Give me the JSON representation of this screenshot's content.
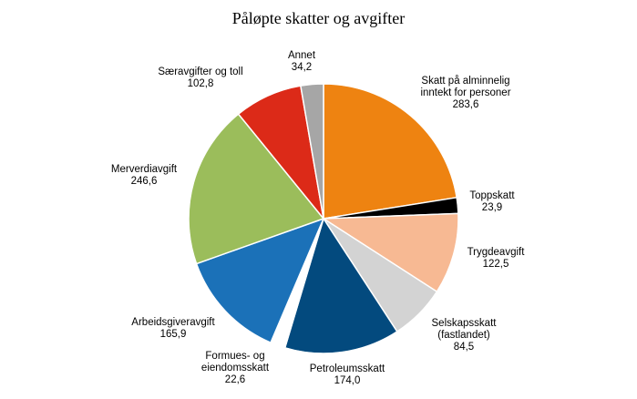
{
  "chart_data": {
    "type": "pie",
    "title": "Påløpte skatter og avgifter",
    "slices": [
      {
        "label": [
          "Skatt på alminnelig",
          "inntekt for personer"
        ],
        "value": 283.6,
        "value_text": "283,6",
        "color": "#ee8311"
      },
      {
        "label": [
          "Toppskatt"
        ],
        "value": 23.9,
        "value_text": "23,9",
        "color": "#000000"
      },
      {
        "label": [
          "Trygdeavgift"
        ],
        "value": 122.5,
        "value_text": "122,5",
        "color": "#f7b993"
      },
      {
        "label": [
          "Selskapsskatt",
          "(fastlandet)"
        ],
        "value": 84.5,
        "value_text": "84,5",
        "color": "#d3d3d3"
      },
      {
        "label": [
          "Petroleumsskatt"
        ],
        "value": 174.0,
        "value_text": "174,0",
        "color": "#034a7e"
      },
      {
        "label": [
          "Formues- og",
          "eiendomsskatt"
        ],
        "value": 22.6,
        "value_text": "22,6",
        "color": "#ffffff"
      },
      {
        "label": [
          "Arbeidsgiveravgift"
        ],
        "value": 165.9,
        "value_text": "165,9",
        "color": "#1b71b8"
      },
      {
        "label": [
          "Merverdiavgift"
        ],
        "value": 246.6,
        "value_text": "246,6",
        "color": "#9bbd5b"
      },
      {
        "label": [
          "Særavgifter og toll"
        ],
        "value": 102.8,
        "value_text": "102,8",
        "color": "#dc2a18"
      },
      {
        "label": [
          "Annet"
        ],
        "value": 34.2,
        "value_text": "34,2",
        "color": "#a6a6a6"
      }
    ]
  }
}
